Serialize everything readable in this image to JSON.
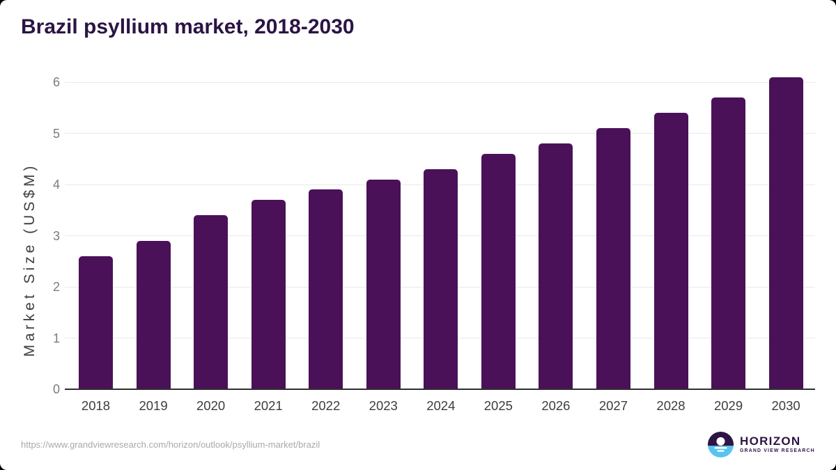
{
  "title": "Brazil psyllium market, 2018-2030",
  "chart_data": {
    "type": "bar",
    "title": "Brazil psyllium market, 2018-2030",
    "categories": [
      "2018",
      "2019",
      "2020",
      "2021",
      "2022",
      "2023",
      "2024",
      "2025",
      "2026",
      "2027",
      "2028",
      "2029",
      "2030"
    ],
    "values": [
      2.6,
      2.9,
      3.4,
      3.7,
      3.9,
      4.1,
      4.3,
      4.6,
      4.8,
      5.1,
      5.4,
      5.7,
      6.1
    ],
    "xlabel": "",
    "ylabel": "Market Size (US$M)",
    "ylim": [
      0,
      6.3
    ],
    "yticks": [
      0,
      1,
      2,
      3,
      4,
      5,
      6
    ],
    "grid": true,
    "legend": false,
    "bar_color": "#4a1158"
  },
  "footer": {
    "source_url": "https://www.grandviewresearch.com/horizon/outlook/psyllium-market/brazil",
    "logo": {
      "brand": "HORIZON",
      "sub_brand": "GRAND VIEW RESEARCH"
    }
  },
  "colors": {
    "bar": "#4a1158",
    "title": "#2b1444",
    "axis_label": "#3f3f3f",
    "tick_label_y": "#7b7b7b",
    "tick_label_x": "#3d3d3d",
    "gridline": "#e9e9e9",
    "baseline": "#2f2f2f",
    "url_text": "#a9a9a9",
    "logo_purple": "#2d1545",
    "logo_blue": "#58c4f0"
  }
}
